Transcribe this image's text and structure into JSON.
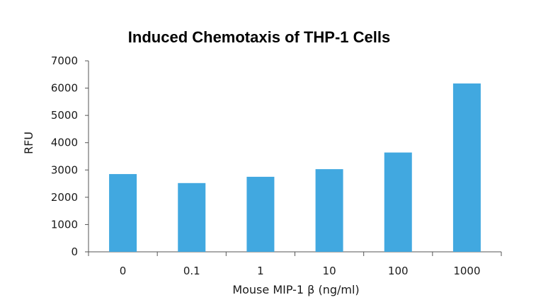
{
  "chart_data": {
    "type": "bar",
    "title": "Induced Chemotaxis of THP-1 Cells",
    "xlabel": "Mouse MIP-1 β (ng/ml)",
    "ylabel": "RFU",
    "categories": [
      "0",
      "0.1",
      "1",
      "10",
      "100",
      "1000"
    ],
    "values": [
      2850,
      2520,
      2750,
      3030,
      3640,
      6170
    ],
    "ylim": [
      0,
      7000
    ],
    "yticks": [
      "0",
      "1000",
      "2000",
      "3000",
      "4000",
      "5000",
      "6000",
      "7000"
    ],
    "grid": false,
    "legend": "none",
    "bar_color": "#41a8e0"
  }
}
